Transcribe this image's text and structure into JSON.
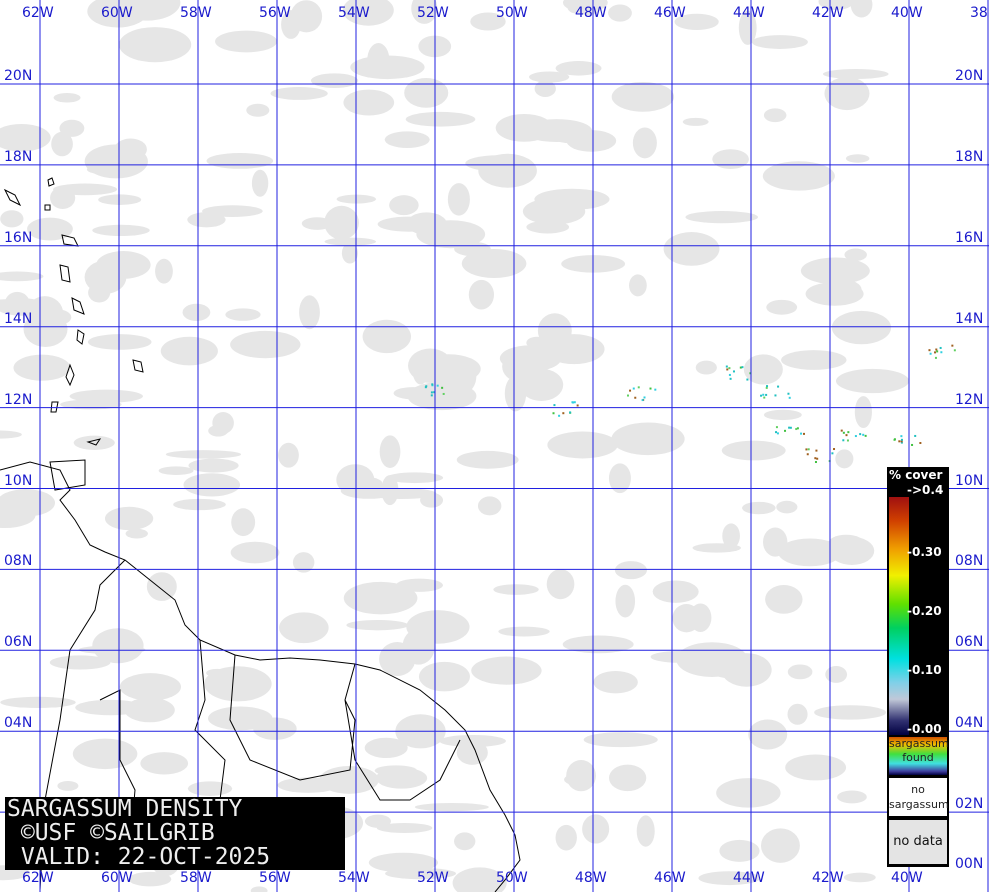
{
  "title": {
    "line1": "SARGASSUM DENSITY",
    "line2": " ©USF ©SAILGRIB",
    "line3": " VALID: 22-OCT-2025"
  },
  "grid": {
    "longitudes": [
      "62W",
      "60W",
      "58W",
      "56W",
      "54W",
      "52W",
      "50W",
      "48W",
      "46W",
      "44W",
      "42W",
      "40W",
      "38"
    ],
    "latitudes": [
      "20N",
      "18N",
      "16N",
      "14N",
      "12N",
      "10N",
      "08N",
      "06N",
      "04N",
      "02N",
      "00N"
    ],
    "line_color": "#2020e0",
    "label_color": "#1a1acc"
  },
  "legend": {
    "header": "% cover",
    "ticks": [
      "->0.4",
      "-0.30",
      "-0.20",
      "-0.10",
      "-0.00"
    ],
    "found_line1": "sargassum",
    "found_line2": "found",
    "no_sargassum_line1": "no",
    "no_sargassum_line2": "sargassum",
    "no_data": "no data"
  },
  "colors": {
    "no_data": "#e4e4e4",
    "land_outline": "#000000",
    "background": "#ffffff"
  }
}
